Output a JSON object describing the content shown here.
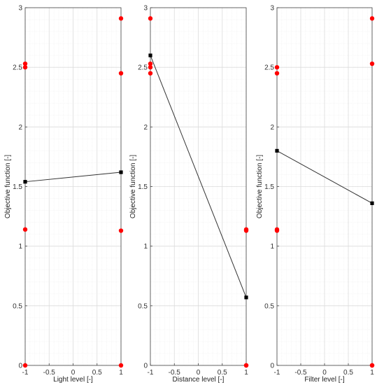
{
  "chart_data": [
    {
      "type": "scatter",
      "xlabel": "Light level  [-]",
      "ylabel": "Objective function  [-]",
      "xlim": [
        -1,
        1
      ],
      "ylim": [
        0,
        3
      ],
      "xticks": [
        -1,
        -0.5,
        0,
        0.5,
        1
      ],
      "yticks": [
        0,
        0.5,
        1,
        1.5,
        2,
        2.5,
        3
      ],
      "grid": true,
      "points": {
        "x": [
          -1,
          -1,
          -1,
          -1,
          1,
          1,
          1,
          1
        ],
        "y": [
          2.53,
          2.5,
          1.14,
          0.0,
          2.91,
          2.45,
          1.13,
          0.0
        ]
      },
      "mean_line": {
        "x": [
          -1,
          1
        ],
        "y": [
          1.54,
          1.62
        ]
      },
      "colors": {
        "points": "#ff0000",
        "mean": "#000000"
      }
    },
    {
      "type": "scatter",
      "xlabel": "Distance level  [-]",
      "ylabel": "Objective function  [-]",
      "xlim": [
        -1,
        1
      ],
      "ylim": [
        0,
        3
      ],
      "xticks": [
        -1,
        -0.5,
        0,
        0.5,
        1
      ],
      "yticks": [
        0,
        0.5,
        1,
        1.5,
        2,
        2.5,
        3
      ],
      "grid": true,
      "points": {
        "x": [
          -1,
          -1,
          -1,
          -1,
          1,
          1,
          1,
          1
        ],
        "y": [
          2.91,
          2.53,
          2.5,
          2.45,
          1.14,
          1.13,
          0.0,
          0.0
        ]
      },
      "mean_line": {
        "x": [
          -1,
          1
        ],
        "y": [
          2.6,
          0.57
        ]
      },
      "colors": {
        "points": "#ff0000",
        "mean": "#000000"
      }
    },
    {
      "type": "scatter",
      "xlabel": "Filter level  [-]",
      "ylabel": "Objective function  [-]",
      "xlim": [
        -1,
        1
      ],
      "ylim": [
        0,
        3
      ],
      "xticks": [
        -1,
        -0.5,
        0,
        0.5,
        1
      ],
      "yticks": [
        0,
        0.5,
        1,
        1.5,
        2,
        2.5,
        3
      ],
      "grid": true,
      "points": {
        "x": [
          -1,
          -1,
          -1,
          -1,
          1,
          1,
          1,
          1
        ],
        "y": [
          2.5,
          2.45,
          1.14,
          1.13,
          2.91,
          2.53,
          0.0,
          0.0
        ]
      },
      "mean_line": {
        "x": [
          -1,
          1
        ],
        "y": [
          1.8,
          1.36
        ]
      },
      "colors": {
        "points": "#ff0000",
        "mean": "#000000"
      }
    }
  ]
}
